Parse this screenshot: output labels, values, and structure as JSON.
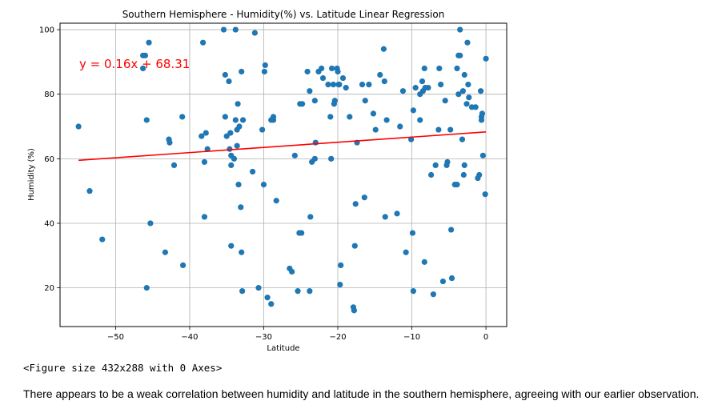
{
  "chart_data": {
    "type": "scatter",
    "title": "Southern Hemisphere - Humidity(%) vs. Latitude Linear Regression",
    "xlabel": "Latitude",
    "ylabel": "Humidity (%)",
    "xlim": [
      -57.5,
      2.8
    ],
    "ylim": [
      8,
      102
    ],
    "xticks": [
      -50,
      -40,
      -30,
      -20,
      -10,
      0
    ],
    "yticks": [
      20,
      40,
      60,
      80,
      100
    ],
    "xtick_labels": [
      "−50",
      "−40",
      "−30",
      "−20",
      "−10",
      "0"
    ],
    "ytick_labels": [
      "20",
      "40",
      "60",
      "80",
      "100"
    ],
    "grid": true,
    "point_color": "#1f77b4",
    "regression": {
      "equation": "y = 0.16x + 68.31",
      "slope": 0.16,
      "intercept": 68.31,
      "x_range": [
        -55,
        0
      ],
      "color": "#ff0000"
    },
    "points": [
      [
        -55,
        70
      ],
      [
        -53.5,
        50
      ],
      [
        -51.8,
        35
      ],
      [
        -46.3,
        92
      ],
      [
        -46.3,
        88
      ],
      [
        -46,
        92
      ],
      [
        -45.8,
        72
      ],
      [
        -45.5,
        96
      ],
      [
        -45.3,
        40
      ],
      [
        -45.8,
        20
      ],
      [
        -43.3,
        31
      ],
      [
        -42.8,
        66
      ],
      [
        -42.7,
        65
      ],
      [
        -42.1,
        58
      ],
      [
        -41,
        73
      ],
      [
        -40.9,
        27
      ],
      [
        -38.4,
        67
      ],
      [
        -38.2,
        96
      ],
      [
        -38,
        42
      ],
      [
        -38,
        59
      ],
      [
        -37.8,
        68
      ],
      [
        -37.6,
        63
      ],
      [
        -35.4,
        100
      ],
      [
        -35.2,
        86
      ],
      [
        -35.2,
        73
      ],
      [
        -35,
        67
      ],
      [
        -34.7,
        84
      ],
      [
        -34.6,
        63
      ],
      [
        -34.5,
        68
      ],
      [
        -34.4,
        33
      ],
      [
        -34.4,
        58
      ],
      [
        -34.4,
        61
      ],
      [
        -34,
        60
      ],
      [
        -33.8,
        72
      ],
      [
        -33.6,
        64
      ],
      [
        -33.6,
        69
      ],
      [
        -33.5,
        77
      ],
      [
        -33.4,
        52
      ],
      [
        -33.8,
        100
      ],
      [
        -33.3,
        70
      ],
      [
        -33.1,
        45
      ],
      [
        -33,
        87
      ],
      [
        -33,
        31
      ],
      [
        -32.9,
        19
      ],
      [
        -32.8,
        72
      ],
      [
        -31.5,
        56
      ],
      [
        -31.2,
        99
      ],
      [
        -30.7,
        20
      ],
      [
        -30.2,
        69
      ],
      [
        -30,
        52
      ],
      [
        -29.9,
        87
      ],
      [
        -29.8,
        89
      ],
      [
        -29.5,
        17
      ],
      [
        -29,
        15
      ],
      [
        -29,
        72
      ],
      [
        -28.7,
        72
      ],
      [
        -28.7,
        73
      ],
      [
        -28.3,
        47
      ],
      [
        -26.5,
        26
      ],
      [
        -26.2,
        25
      ],
      [
        -25.8,
        61
      ],
      [
        -25.4,
        19
      ],
      [
        -25.2,
        37
      ],
      [
        -25.1,
        77
      ],
      [
        -24.8,
        77
      ],
      [
        -24.9,
        37
      ],
      [
        -24.1,
        87
      ],
      [
        -23.8,
        19
      ],
      [
        -23.8,
        81
      ],
      [
        -23.7,
        42
      ],
      [
        -23.5,
        59
      ],
      [
        -23.1,
        60
      ],
      [
        -23.0,
        65
      ],
      [
        -23.1,
        78
      ],
      [
        -22.6,
        87
      ],
      [
        -22.2,
        88
      ],
      [
        -22,
        85
      ],
      [
        -21.3,
        83
      ],
      [
        -21,
        73
      ],
      [
        -20.9,
        60
      ],
      [
        -20.8,
        88
      ],
      [
        -20.6,
        83
      ],
      [
        -20.5,
        77
      ],
      [
        -20.4,
        78
      ],
      [
        -20.1,
        88
      ],
      [
        -20,
        87
      ],
      [
        -19.9,
        83
      ],
      [
        -19.8,
        83
      ],
      [
        -19.7,
        21
      ],
      [
        -19.6,
        27
      ],
      [
        -19.3,
        85
      ],
      [
        -18.9,
        82
      ],
      [
        -18.4,
        73
      ],
      [
        -17.9,
        14
      ],
      [
        -17.8,
        13
      ],
      [
        -17.7,
        33
      ],
      [
        -17.6,
        46
      ],
      [
        -17.4,
        65
      ],
      [
        -16.7,
        83
      ],
      [
        -16.4,
        48
      ],
      [
        -16.3,
        78
      ],
      [
        -15.8,
        83
      ],
      [
        -15.2,
        74
      ],
      [
        -14.9,
        69
      ],
      [
        -14.3,
        86
      ],
      [
        -13.8,
        94
      ],
      [
        -13.7,
        84
      ],
      [
        -13.6,
        42
      ],
      [
        -13.4,
        72
      ],
      [
        -12,
        43
      ],
      [
        -11.6,
        70
      ],
      [
        -11.2,
        81
      ],
      [
        -10.8,
        31
      ],
      [
        -10.1,
        66
      ],
      [
        -9.9,
        37
      ],
      [
        -9.8,
        75
      ],
      [
        -9.8,
        19
      ],
      [
        -9.5,
        82
      ],
      [
        -8.9,
        80
      ],
      [
        -8.9,
        72
      ],
      [
        -8.6,
        84
      ],
      [
        -8.5,
        81
      ],
      [
        -8.3,
        88
      ],
      [
        -8.3,
        28
      ],
      [
        -8.2,
        82
      ],
      [
        -7.8,
        82
      ],
      [
        -7.4,
        55
      ],
      [
        -7.1,
        18
      ],
      [
        -6.8,
        58
      ],
      [
        -6.4,
        69
      ],
      [
        -6.3,
        88
      ],
      [
        -6.1,
        83
      ],
      [
        -5.8,
        22
      ],
      [
        -5.5,
        78
      ],
      [
        -5.3,
        58
      ],
      [
        -5.2,
        59
      ],
      [
        -4.8,
        69
      ],
      [
        -4.7,
        38
      ],
      [
        -4.6,
        23
      ],
      [
        -4.2,
        52
      ],
      [
        -3.9,
        52
      ],
      [
        -3.9,
        88
      ],
      [
        -3.7,
        92
      ],
      [
        -3.7,
        80
      ],
      [
        -3.5,
        92
      ],
      [
        -3.5,
        100
      ],
      [
        -3.2,
        66
      ],
      [
        -3.1,
        81
      ],
      [
        -3.0,
        55
      ],
      [
        -2.9,
        86
      ],
      [
        -2.9,
        58
      ],
      [
        -2.6,
        77
      ],
      [
        -2.5,
        96
      ],
      [
        -2.4,
        83
      ],
      [
        -2.3,
        79
      ],
      [
        -1.9,
        76
      ],
      [
        -1.4,
        76
      ],
      [
        -1.1,
        54
      ],
      [
        -0.9,
        55
      ],
      [
        -0.7,
        81
      ],
      [
        -0.6,
        73
      ],
      [
        -0.6,
        72
      ],
      [
        -0.5,
        74
      ],
      [
        -0.4,
        61
      ],
      [
        0,
        91
      ],
      [
        -0.1,
        49
      ]
    ]
  },
  "output": {
    "figure_repr": "<Figure size 432x288 with 0 Axes>",
    "description": "There appears to be a weak correlation between humidity and latitude in the southern hemisphere, agreeing with our earlier observation."
  }
}
